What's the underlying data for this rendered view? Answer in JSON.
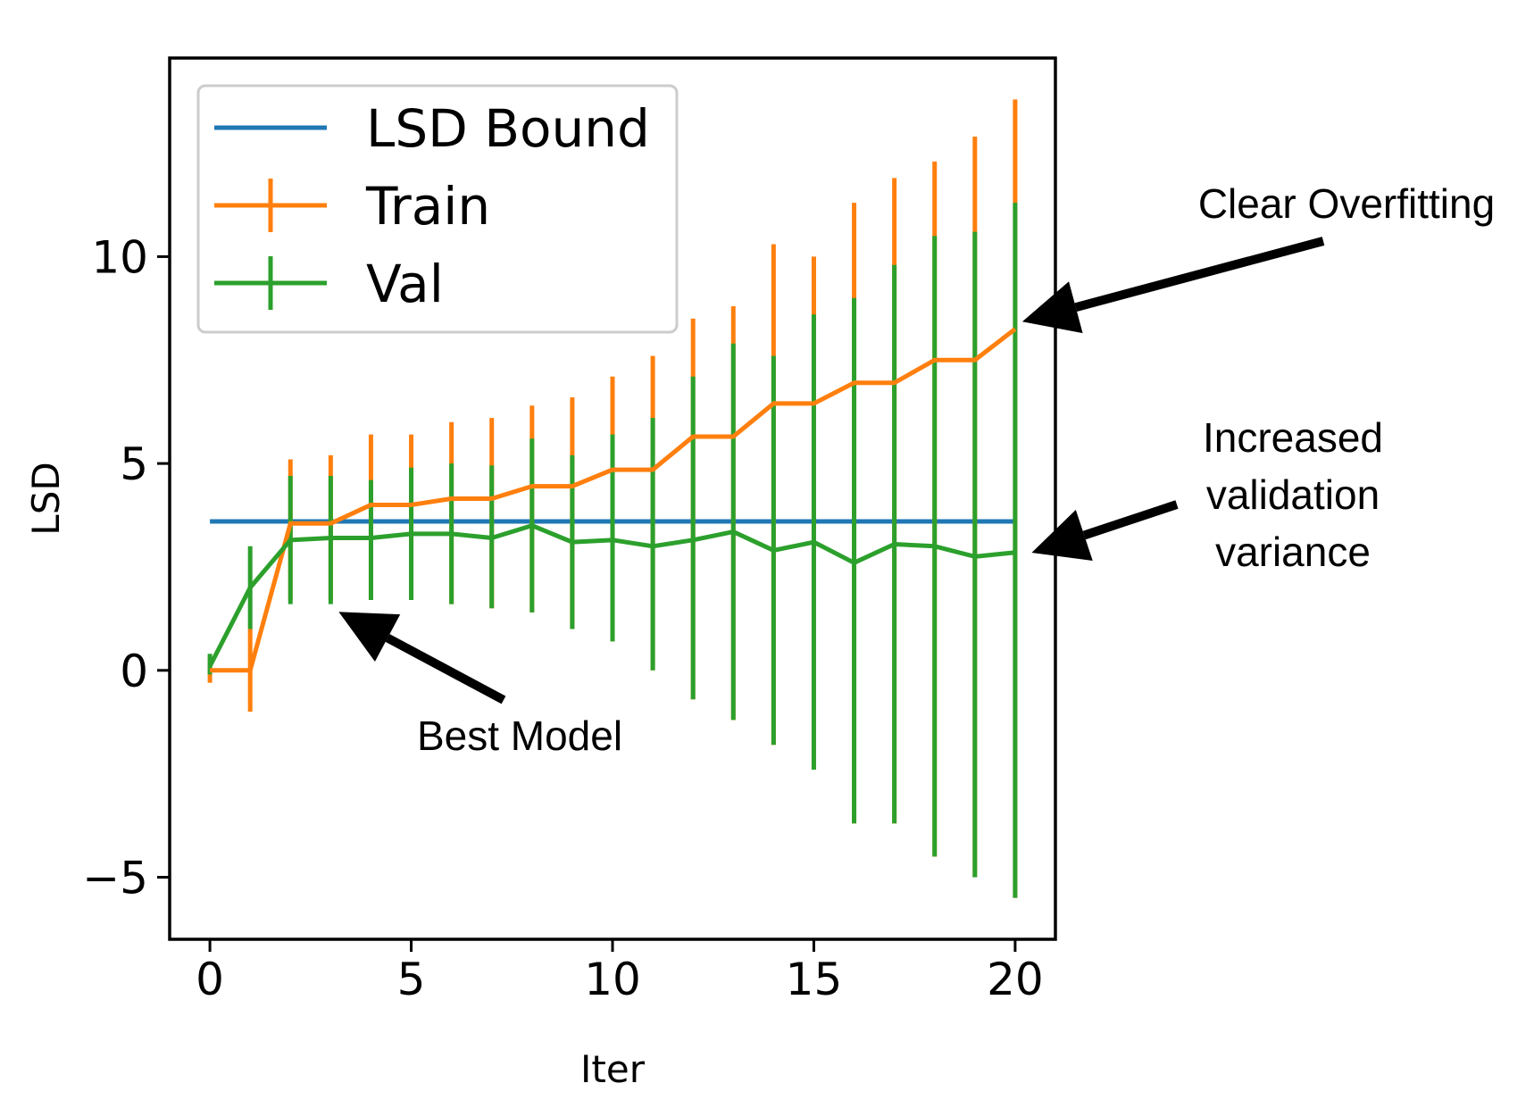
{
  "chart_data": {
    "type": "line",
    "title": "",
    "xlabel": "Iter",
    "ylabel": "LSD",
    "xlim": [
      -1,
      21
    ],
    "ylim": [
      -6.5,
      14.8
    ],
    "xticks": [
      0,
      5,
      10,
      15,
      20
    ],
    "yticks": [
      -5,
      0,
      5,
      10
    ],
    "xtick_labels": [
      "0",
      "5",
      "10",
      "15",
      "20"
    ],
    "ytick_labels": [
      "−5",
      "0",
      "5",
      "10"
    ],
    "grid": false,
    "legend_position": "top-left",
    "x": [
      0,
      1,
      2,
      3,
      4,
      5,
      6,
      7,
      8,
      9,
      10,
      11,
      12,
      13,
      14,
      15,
      16,
      17,
      18,
      19,
      20
    ],
    "reference_line": {
      "name": "LSD Bound",
      "color": "#1f77b4",
      "y": 3.6,
      "x_range": [
        0,
        20
      ]
    },
    "series": [
      {
        "name": "Train",
        "color": "#ff7f0e",
        "values": [
          0,
          0,
          3.55,
          3.55,
          4.0,
          4.0,
          4.15,
          4.15,
          4.45,
          4.45,
          4.85,
          4.85,
          5.65,
          5.65,
          6.45,
          6.45,
          6.95,
          6.95,
          7.5,
          7.5,
          8.25
        ],
        "err_low": [
          -0.3,
          -1.0,
          1.7,
          1.7,
          1.7,
          1.7,
          1.6,
          1.5,
          1.4,
          1.0,
          0.7,
          0.0,
          -0.7,
          -1.2,
          -1.8,
          -2.4,
          -3.7,
          -3.7,
          -4.5,
          -5.0,
          -5.5
        ],
        "err_high": [
          0.3,
          1.0,
          5.1,
          5.2,
          5.7,
          5.7,
          6.0,
          6.1,
          6.4,
          6.6,
          7.1,
          7.6,
          8.5,
          8.8,
          10.3,
          10.0,
          11.3,
          11.9,
          12.3,
          12.9,
          13.8
        ]
      },
      {
        "name": "Val",
        "color": "#2ca02c",
        "values": [
          0.1,
          2.0,
          3.15,
          3.2,
          3.2,
          3.3,
          3.3,
          3.2,
          3.5,
          3.1,
          3.15,
          3.0,
          3.15,
          3.35,
          2.9,
          3.1,
          2.6,
          3.05,
          3.0,
          2.75,
          2.85
        ],
        "err_low": [
          -0.1,
          1.0,
          1.6,
          1.6,
          1.7,
          1.7,
          1.6,
          1.5,
          1.4,
          1.0,
          0.7,
          0.0,
          -0.7,
          -1.2,
          -1.8,
          -2.4,
          -3.7,
          -3.7,
          -4.5,
          -5.0,
          -5.5
        ],
        "err_high": [
          0.4,
          3.0,
          4.7,
          4.7,
          4.6,
          4.9,
          5.0,
          4.95,
          5.6,
          5.2,
          5.7,
          6.1,
          7.1,
          7.9,
          7.6,
          8.6,
          9.0,
          9.8,
          10.5,
          10.6,
          11.3
        ]
      }
    ],
    "legend": [
      "LSD Bound",
      "Train",
      "Val"
    ],
    "annotations": [
      {
        "name": "clear-overfitting",
        "lines": [
          "Clear Overfitting"
        ],
        "target_x": 20,
        "target_y": 8.3
      },
      {
        "name": "increased-validation-variance",
        "lines": [
          "Increased",
          "validation",
          "variance"
        ],
        "target_x": 20.5,
        "target_y": 2.8
      },
      {
        "name": "best-model",
        "lines": [
          "Best Model"
        ],
        "target_x": 3.2,
        "target_y": 1.5
      }
    ]
  }
}
